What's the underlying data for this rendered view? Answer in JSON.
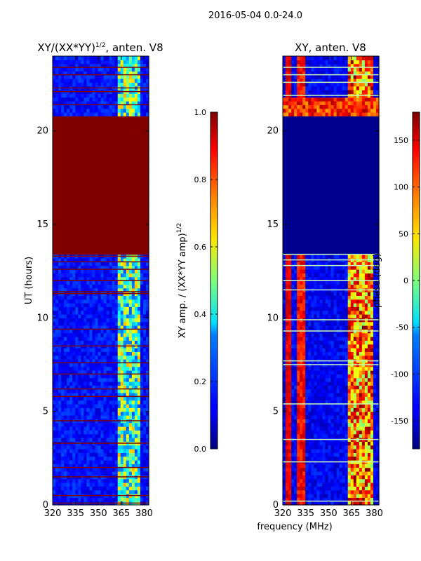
{
  "figure": {
    "suptitle": "2016-05-04 0.0-24.0",
    "xlabel": "frequency (MHz)"
  },
  "chart_data": [
    {
      "type": "heatmap",
      "title": "XY/(XX*YY)",
      "title_exponent": "1/2",
      "title_suffix": ", anten. V8",
      "xlabel": "",
      "ylabel": "UT (hours)",
      "xlim": [
        320,
        383
      ],
      "ylim": [
        0,
        24
      ],
      "xticks": [
        "320",
        "335",
        "350",
        "365",
        "380"
      ],
      "xtick_values": [
        320,
        335,
        350,
        365,
        380
      ],
      "yticks": [
        "0",
        "5",
        "10",
        "15",
        "20"
      ],
      "ytick_values": [
        0,
        5,
        10,
        15,
        20
      ],
      "colorbar": {
        "label": "XY amp. / (XX*YY amp)",
        "label_exponent": "1/2",
        "range": [
          0.0,
          1.0
        ],
        "ticks": [
          "0.0",
          "0.2",
          "0.4",
          "0.6",
          "0.8",
          "1.0"
        ],
        "tick_values": [
          0.0,
          0.2,
          0.4,
          0.6,
          0.8,
          1.0
        ]
      },
      "regions": [
        {
          "desc": "saturated",
          "t_start": 13.5,
          "t_end": 20.8,
          "value": 1.0
        },
        {
          "desc": "high band",
          "f_start": 363,
          "f_end": 378,
          "value": 0.45
        },
        {
          "desc": "background",
          "value": 0.08
        }
      ],
      "flag_lines_hours": [
        0.1,
        0.5,
        1.5,
        2.0,
        3.3,
        4.5,
        5.8,
        6.2,
        7.0,
        7.6,
        8.5,
        9.4,
        11.3,
        11.4,
        12.0,
        12.6,
        13.0,
        13.3,
        21.4,
        22.1,
        22.3,
        23.0,
        23.4
      ]
    },
    {
      "type": "heatmap",
      "title": "XY, anten. V8",
      "xlabel": "frequency (MHz)",
      "ylabel": "",
      "xlim": [
        320,
        383
      ],
      "ylim": [
        0,
        24
      ],
      "xticks": [
        "320",
        "335",
        "350",
        "365",
        "380"
      ],
      "xtick_values": [
        320,
        335,
        350,
        365,
        380
      ],
      "yticks": [
        "0",
        "5",
        "10",
        "15",
        "20"
      ],
      "ytick_values": [
        0,
        5,
        10,
        15,
        20
      ],
      "colorbar": {
        "label": "phase (deg)",
        "range": [
          -180,
          180
        ],
        "ticks": [
          "-150",
          "-100",
          "-50",
          "0",
          "50",
          "100",
          "150"
        ],
        "tick_values": [
          -150,
          -100,
          -50,
          0,
          50,
          100,
          150
        ]
      },
      "regions": [
        {
          "desc": "flat",
          "t_start": 13.5,
          "t_end": 20.8,
          "value": -175
        },
        {
          "desc": "hot band",
          "t_start": 20.8,
          "t_end": 21.8,
          "value": 120
        },
        {
          "desc": "high band",
          "f_start": 363,
          "f_end": 380,
          "value": 90
        },
        {
          "desc": "background",
          "value": -160
        }
      ],
      "flag_lines_hours": [
        0.2,
        2.3,
        3.5,
        5.4,
        7.5,
        7.7,
        9.3,
        9.9,
        11.5,
        12.0,
        12.8,
        13.1,
        13.4,
        21.9,
        22.6,
        23.0,
        23.4
      ]
    }
  ]
}
